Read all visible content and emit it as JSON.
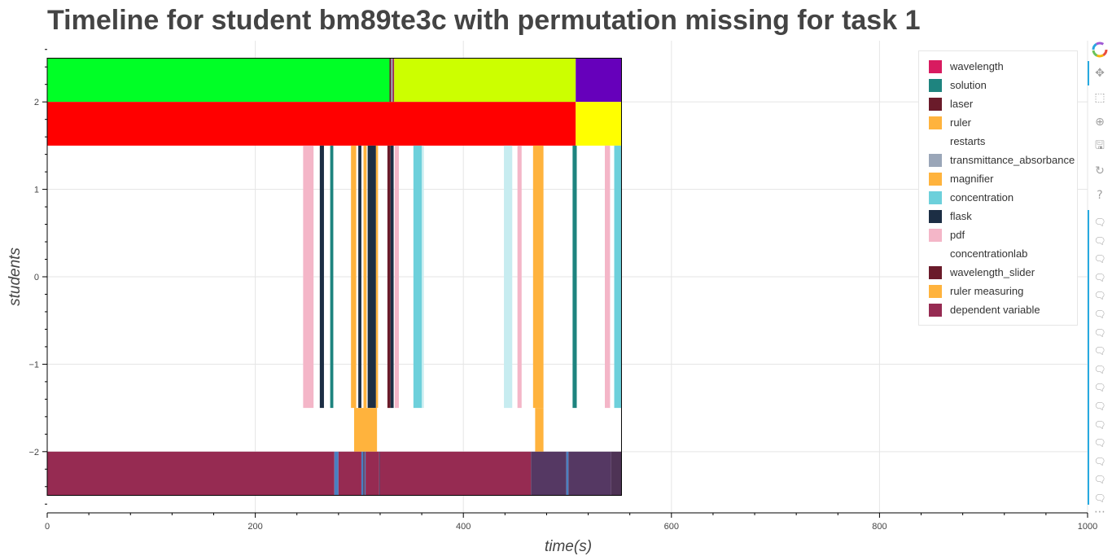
{
  "chart_data": {
    "type": "timeline",
    "title": "Timeline for student bm89te3c with permutation missing for task 1",
    "xlabel": "time(s)",
    "ylabel": "students",
    "xlim": [
      0,
      1000
    ],
    "ylim": [
      -2.7,
      2.7
    ],
    "x_ticks": [
      0,
      200,
      400,
      600,
      800,
      1000
    ],
    "x_tick_labels": [
      "0",
      "200",
      "400",
      "600",
      "800",
      "1000"
    ],
    "y_ticks": [
      -2,
      -1,
      0,
      1,
      2
    ],
    "y_tick_labels": [
      "−2",
      "−1",
      "0",
      "1",
      "2"
    ],
    "grid": true,
    "legend_position": "top-right",
    "legend": [
      {
        "label": "wavelength",
        "color": "#d81b60"
      },
      {
        "label": "solution",
        "color": "#1e847f"
      },
      {
        "label": "laser",
        "color": "#6a1b2a"
      },
      {
        "label": "ruler",
        "color": "#ffb33d"
      },
      {
        "label": "restarts",
        "color": "#ffffff"
      },
      {
        "label": "transmittance_absorbance",
        "color": "#9aa6b8"
      },
      {
        "label": "magnifier",
        "color": "#ffb33d"
      },
      {
        "label": "concentration",
        "color": "#6dd0db"
      },
      {
        "label": "flask",
        "color": "#1c2e44"
      },
      {
        "label": "pdf",
        "color": "#f4b6c8"
      },
      {
        "label": "concentrationlab",
        "color": "#ffffff"
      },
      {
        "label": "wavelength_slider",
        "color": "#6a1b2a"
      },
      {
        "label": "ruler measuring",
        "color": "#ffb33d"
      },
      {
        "label": "dependent variable",
        "color": "#962b52"
      }
    ],
    "outline_box": {
      "x0": 0,
      "x1": 552,
      "y0": -2.5,
      "y1": 2.5
    },
    "bars": [
      {
        "x0": 0,
        "x1": 329,
        "y0": 2.0,
        "y1": 2.5,
        "color": "#00ff26"
      },
      {
        "x0": 329,
        "x1": 330.5,
        "y0": 2.0,
        "y1": 2.5,
        "color": "#6a1b2a"
      },
      {
        "x0": 330.5,
        "x1": 332,
        "y0": 2.0,
        "y1": 2.5,
        "color": "#9aa6b8"
      },
      {
        "x0": 332,
        "x1": 333.5,
        "y0": 2.0,
        "y1": 2.5,
        "color": "#962b52"
      },
      {
        "x0": 333.5,
        "x1": 508,
        "y0": 2.0,
        "y1": 2.5,
        "color": "#ccff00"
      },
      {
        "x0": 508,
        "x1": 552,
        "y0": 2.0,
        "y1": 2.5,
        "color": "#6600bb"
      },
      {
        "x0": 0,
        "x1": 508,
        "y0": 1.5,
        "y1": 2.0,
        "color": "#ff0000"
      },
      {
        "x0": 508,
        "x1": 552,
        "y0": 1.5,
        "y1": 2.0,
        "color": "#ffff00"
      },
      {
        "x0": 246,
        "x1": 256,
        "y0": -1.5,
        "y1": 1.5,
        "color": "#f4b6c8"
      },
      {
        "x0": 262,
        "x1": 266,
        "y0": -1.5,
        "y1": 1.5,
        "color": "#1c2e44"
      },
      {
        "x0": 272,
        "x1": 275,
        "y0": -1.5,
        "y1": 1.5,
        "color": "#1e847f"
      },
      {
        "x0": 292,
        "x1": 297,
        "y0": -1.5,
        "y1": 1.5,
        "color": "#ffb33d"
      },
      {
        "x0": 299,
        "x1": 302,
        "y0": -1.5,
        "y1": 1.5,
        "color": "#1c2e44"
      },
      {
        "x0": 304,
        "x1": 307,
        "y0": -1.5,
        "y1": 1.5,
        "color": "#ffb33d"
      },
      {
        "x0": 308,
        "x1": 316,
        "y0": -1.5,
        "y1": 1.5,
        "color": "#1c2e44"
      },
      {
        "x0": 316,
        "x1": 318,
        "y0": -1.5,
        "y1": 1.5,
        "color": "#ffb33d"
      },
      {
        "x0": 327,
        "x1": 330,
        "y0": -1.5,
        "y1": 1.5,
        "color": "#6a1b2a"
      },
      {
        "x0": 330,
        "x1": 333,
        "y0": -1.5,
        "y1": 1.5,
        "color": "#1c2e44"
      },
      {
        "x0": 334,
        "x1": 338,
        "y0": -1.5,
        "y1": 1.5,
        "color": "#f4b6c8"
      },
      {
        "x0": 352,
        "x1": 360,
        "y0": -1.5,
        "y1": 1.5,
        "color": "#6dd0db"
      },
      {
        "x0": 360,
        "x1": 362,
        "y0": -1.5,
        "y1": 1.5,
        "color": "#c7ecf0"
      },
      {
        "x0": 439,
        "x1": 447,
        "y0": -1.5,
        "y1": 1.5,
        "color": "#c7ecf0"
      },
      {
        "x0": 452,
        "x1": 456,
        "y0": -1.5,
        "y1": 1.5,
        "color": "#f4b6c8"
      },
      {
        "x0": 467,
        "x1": 477,
        "y0": -1.5,
        "y1": 1.5,
        "color": "#ffb33d"
      },
      {
        "x0": 505,
        "x1": 509,
        "y0": -1.5,
        "y1": 1.5,
        "color": "#1e847f"
      },
      {
        "x0": 536,
        "x1": 541,
        "y0": -1.5,
        "y1": 1.5,
        "color": "#f4b6c8"
      },
      {
        "x0": 545,
        "x1": 552,
        "y0": -1.5,
        "y1": 1.5,
        "color": "#6dd0db"
      },
      {
        "x0": 295,
        "x1": 317,
        "y0": -2.0,
        "y1": -1.5,
        "color": "#ffb33d"
      },
      {
        "x0": 469,
        "x1": 477,
        "y0": -2.0,
        "y1": -1.5,
        "color": "#ffb33d"
      },
      {
        "x0": 0,
        "x1": 276,
        "y0": -2.5,
        "y1": -2.0,
        "color": "#962b52"
      },
      {
        "x0": 276,
        "x1": 280,
        "y0": -2.5,
        "y1": -2.0,
        "color": "#4a7fc1"
      },
      {
        "x0": 280,
        "x1": 302,
        "y0": -2.5,
        "y1": -2.0,
        "color": "#962b52"
      },
      {
        "x0": 302,
        "x1": 304,
        "y0": -2.5,
        "y1": -2.0,
        "color": "#4a7fc1"
      },
      {
        "x0": 304,
        "x1": 305,
        "y0": -2.5,
        "y1": -2.0,
        "color": "#6a1b2a"
      },
      {
        "x0": 305,
        "x1": 306,
        "y0": -2.5,
        "y1": -2.0,
        "color": "#4a7fc1"
      },
      {
        "x0": 306,
        "x1": 319,
        "y0": -2.5,
        "y1": -2.0,
        "color": "#962b52"
      },
      {
        "x0": 319,
        "x1": 320,
        "y0": -2.5,
        "y1": -2.0,
        "color": "#5d3a63"
      },
      {
        "x0": 320,
        "x1": 465,
        "y0": -2.5,
        "y1": -2.0,
        "color": "#962b52"
      },
      {
        "x0": 465,
        "x1": 499,
        "y0": -2.5,
        "y1": -2.0,
        "color": "#553863"
      },
      {
        "x0": 499,
        "x1": 501,
        "y0": -2.5,
        "y1": -2.0,
        "color": "#4a7fc1"
      },
      {
        "x0": 501,
        "x1": 542,
        "y0": -2.5,
        "y1": -2.0,
        "color": "#553863"
      },
      {
        "x0": 542,
        "x1": 552,
        "y0": -2.5,
        "y1": -2.0,
        "color": "#4e3355"
      }
    ]
  },
  "toolbar": {
    "logo_icon": "bokeh-logo-icon",
    "tools": [
      {
        "name": "pan-tool",
        "glyph": "✥"
      },
      {
        "name": "box-zoom-tool",
        "glyph": "⬚"
      },
      {
        "name": "wheel-zoom-tool",
        "glyph": "⊕"
      },
      {
        "name": "save-tool",
        "glyph": "🖫"
      },
      {
        "name": "reset-tool",
        "glyph": "↻"
      },
      {
        "name": "help-tool",
        "glyph": "?"
      }
    ],
    "hover_glyph": "🗨",
    "hover_count": 16,
    "more_glyph": "⋯",
    "accent_color": "#26aae1"
  }
}
